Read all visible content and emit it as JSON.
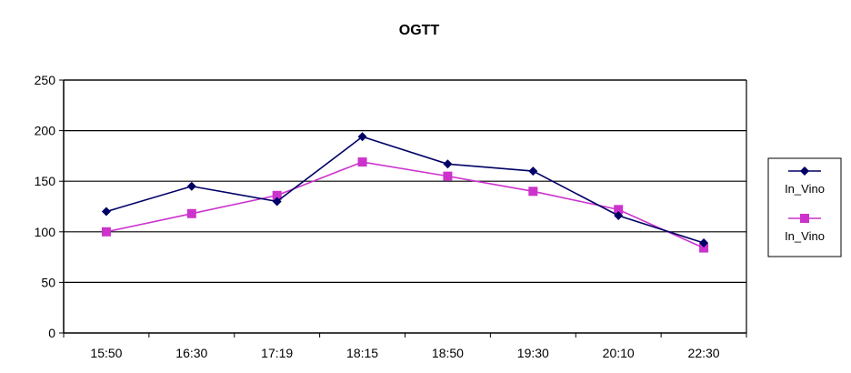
{
  "chart_data": {
    "type": "line",
    "title": "OGTT",
    "xlabel": "",
    "ylabel": "",
    "categories": [
      "15:50",
      "16:30",
      "17:19",
      "18:15",
      "18:50",
      "19:30",
      "20:10",
      "22:30"
    ],
    "ylim": [
      0,
      250
    ],
    "yticks": [
      0,
      50,
      100,
      150,
      200,
      250
    ],
    "grid": true,
    "legend_position": "right",
    "series": [
      {
        "name": "In_Vino",
        "color": "#000066",
        "marker": "diamond",
        "values": [
          120,
          145,
          130,
          194,
          167,
          160,
          116,
          89
        ]
      },
      {
        "name": "In_Vino",
        "color": "#cc33cc",
        "marker": "square",
        "values": [
          100,
          118,
          136,
          169,
          155,
          140,
          122,
          84
        ]
      }
    ]
  }
}
